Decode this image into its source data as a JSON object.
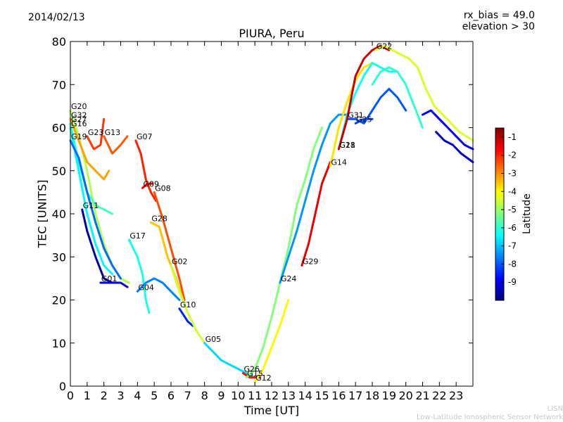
{
  "header": {
    "date": "2014/02/13",
    "bias_line1": "rx_bias = 49.0",
    "bias_line2": "elevation > 30"
  },
  "footer": {
    "credit_line1": "LISN",
    "credit_line2": "Low-Latitude Ionospheric Sensor Network"
  },
  "chart_data": {
    "type": "scatter",
    "title": "PIURA, Peru",
    "xlabel": "Time [UT]",
    "ylabel": "TEC [UNITS]",
    "xlim": [
      0,
      24
    ],
    "ylim": [
      0,
      80
    ],
    "xticks": [
      "0",
      "1",
      "2",
      "3",
      "4",
      "5",
      "6",
      "7",
      "8",
      "9",
      "10",
      "11",
      "12",
      "13",
      "14",
      "15",
      "16",
      "17",
      "18",
      "19",
      "20",
      "21",
      "22",
      "23"
    ],
    "yticks": [
      "0",
      "10",
      "20",
      "30",
      "40",
      "50",
      "60",
      "70",
      "80"
    ],
    "grid": false,
    "colorbar": {
      "label": "Latitude",
      "range": [
        -10,
        -0.5
      ],
      "ticks": [
        "-1",
        "-2",
        "-3",
        "-4",
        "-5",
        "-6",
        "-7",
        "-8",
        "-9"
      ],
      "colormap": [
        "#00007f",
        "#0000ff",
        "#007fff",
        "#00ffff",
        "#7fff7f",
        "#ffff00",
        "#ff7f00",
        "#ff0000",
        "#7f0000"
      ]
    },
    "series": [
      {
        "name": "G20",
        "lat": -4.8,
        "points": [
          [
            0,
            64
          ],
          [
            0.5,
            58
          ],
          [
            1,
            50
          ],
          [
            1.5,
            40
          ],
          [
            2,
            33
          ],
          [
            2.5,
            28
          ],
          [
            3,
            25
          ],
          [
            3.5,
            24
          ]
        ]
      },
      {
        "name": "G32",
        "lat": -3.2,
        "points": [
          [
            0,
            62
          ],
          [
            0.5,
            57
          ],
          [
            1,
            52
          ],
          [
            1.5,
            50
          ],
          [
            2,
            48
          ],
          [
            2.3,
            50
          ]
        ]
      },
      {
        "name": "G27",
        "lat": -5.8,
        "points": [
          [
            0,
            61
          ],
          [
            0.5,
            52
          ],
          [
            1,
            45
          ],
          [
            1.5,
            42
          ],
          [
            2,
            41
          ],
          [
            2.5,
            40
          ]
        ]
      },
      {
        "name": "G16",
        "lat": -6.5,
        "points": [
          [
            0,
            60
          ],
          [
            0.5,
            50
          ],
          [
            1,
            40
          ],
          [
            1.5,
            33
          ],
          [
            2,
            28
          ],
          [
            2.5,
            26
          ]
        ]
      },
      {
        "name": "G23",
        "lat": -2.2,
        "points": [
          [
            1,
            58
          ],
          [
            1.4,
            55
          ],
          [
            1.8,
            56
          ],
          [
            2,
            62
          ]
        ]
      },
      {
        "name": "G13",
        "lat": -2.5,
        "points": [
          [
            2,
            58
          ],
          [
            2.5,
            54
          ],
          [
            3,
            56
          ],
          [
            3.4,
            58
          ]
        ]
      },
      {
        "name": "G19",
        "lat": -7.8,
        "points": [
          [
            0,
            57
          ],
          [
            0.5,
            53
          ],
          [
            1,
            45
          ],
          [
            1.5,
            38
          ],
          [
            2,
            32
          ],
          [
            2.5,
            28
          ],
          [
            3,
            25
          ]
        ]
      },
      {
        "name": "G11",
        "lat": -9.6,
        "points": [
          [
            0.7,
            41
          ],
          [
            1,
            36
          ],
          [
            1.5,
            30
          ],
          [
            2,
            25
          ],
          [
            2.5,
            24
          ]
        ]
      },
      {
        "name": "G01",
        "lat": -9.0,
        "points": [
          [
            1.8,
            24
          ],
          [
            2.5,
            24
          ],
          [
            3,
            24
          ],
          [
            3.4,
            23
          ]
        ]
      },
      {
        "name": "G07",
        "lat": -2.0,
        "points": [
          [
            3.9,
            57
          ],
          [
            4.2,
            54
          ],
          [
            4.5,
            48
          ],
          [
            4.8,
            45
          ],
          [
            5.1,
            43
          ]
        ]
      },
      {
        "name": "G09",
        "lat": -1.5,
        "points": [
          [
            4.3,
            46
          ],
          [
            4.6,
            47
          ],
          [
            4.9,
            47
          ]
        ]
      },
      {
        "name": "G08",
        "lat": -2.4,
        "points": [
          [
            5,
            45
          ],
          [
            5.5,
            39
          ],
          [
            6,
            32
          ],
          [
            6.5,
            25
          ],
          [
            6.8,
            20
          ]
        ]
      },
      {
        "name": "G17",
        "lat": -6.2,
        "points": [
          [
            3.5,
            34
          ],
          [
            4,
            30
          ],
          [
            4.3,
            26
          ],
          [
            4.5,
            20
          ],
          [
            4.7,
            17
          ]
        ]
      },
      {
        "name": "G04",
        "lat": -7.6,
        "points": [
          [
            4,
            22
          ],
          [
            4.5,
            24
          ],
          [
            5,
            25
          ],
          [
            5.5,
            24
          ],
          [
            6,
            22
          ],
          [
            6.5,
            20
          ]
        ]
      },
      {
        "name": "G28",
        "lat": -3.5,
        "points": [
          [
            4.8,
            38
          ],
          [
            5.3,
            37
          ],
          [
            5.8,
            30
          ],
          [
            6.3,
            25
          ],
          [
            6.8,
            19
          ]
        ]
      },
      {
        "name": "G10",
        "lat": -8.5,
        "points": [
          [
            6.5,
            18
          ],
          [
            7,
            15
          ],
          [
            7.3,
            14
          ]
        ]
      },
      {
        "name": "G02",
        "lat": -4.5,
        "points": [
          [
            6,
            28
          ],
          [
            6.5,
            22
          ],
          [
            7,
            17
          ],
          [
            7.5,
            13
          ],
          [
            8,
            10
          ],
          [
            8.5,
            8
          ],
          [
            9,
            6
          ]
        ]
      },
      {
        "name": "G05",
        "lat": -6.8,
        "points": [
          [
            8,
            10
          ],
          [
            8.5,
            8
          ],
          [
            9,
            6
          ],
          [
            9.5,
            5
          ],
          [
            10,
            4
          ],
          [
            10.5,
            3
          ],
          [
            11,
            2
          ]
        ]
      },
      {
        "name": "G26",
        "lat": -1.8,
        "points": [
          [
            10.3,
            3
          ],
          [
            10.7,
            2
          ],
          [
            11,
            2
          ],
          [
            11.3,
            2
          ]
        ]
      },
      {
        "name": "G12",
        "lat": -4.0,
        "points": [
          [
            11,
            1
          ],
          [
            11.5,
            4
          ],
          [
            12,
            9
          ],
          [
            12.5,
            14
          ],
          [
            13,
            20
          ]
        ]
      },
      {
        "name": "G15",
        "lat": -5.2,
        "points": [
          [
            10.5,
            2
          ],
          [
            11,
            4
          ],
          [
            11.5,
            9
          ],
          [
            12,
            16
          ],
          [
            12.5,
            24
          ],
          [
            13,
            32
          ],
          [
            13.5,
            42
          ],
          [
            14,
            48
          ],
          [
            14.5,
            55
          ],
          [
            15,
            60
          ]
        ]
      },
      {
        "name": "G24",
        "lat": -7.4,
        "points": [
          [
            12.5,
            24
          ],
          [
            13,
            30
          ],
          [
            13.5,
            36
          ],
          [
            14,
            43
          ],
          [
            14.5,
            50
          ],
          [
            15,
            56
          ],
          [
            15.5,
            61
          ],
          [
            16,
            63
          ],
          [
            16.5,
            63
          ]
        ]
      },
      {
        "name": "G29",
        "lat": -1.5,
        "points": [
          [
            13.8,
            28
          ],
          [
            14.2,
            33
          ],
          [
            14.6,
            40
          ],
          [
            15,
            47
          ],
          [
            15.5,
            52
          ]
        ]
      },
      {
        "name": "G14",
        "lat": -3.8,
        "points": [
          [
            15.5,
            51
          ],
          [
            16,
            60
          ],
          [
            16.5,
            66
          ],
          [
            17,
            71
          ],
          [
            17.5,
            74
          ],
          [
            18,
            75
          ],
          [
            18.5,
            74
          ]
        ]
      },
      {
        "name": "G21",
        "lat": -6.3,
        "points": [
          [
            16,
            55
          ],
          [
            16.5,
            63
          ],
          [
            17,
            68
          ],
          [
            17.5,
            72
          ],
          [
            18,
            75
          ],
          [
            18.5,
            74
          ],
          [
            19,
            73
          ],
          [
            19.5,
            73
          ]
        ]
      },
      {
        "name": "G25",
        "lat": -8.2,
        "points": [
          [
            17,
            61
          ],
          [
            17.5,
            62
          ],
          [
            18,
            62
          ]
        ]
      },
      {
        "name": "G31",
        "lat": -8.0,
        "points": [
          [
            16.5,
            62
          ],
          [
            17,
            62
          ],
          [
            17.5,
            61
          ],
          [
            18,
            64
          ],
          [
            18.5,
            67
          ],
          [
            19,
            69
          ],
          [
            19.5,
            67
          ],
          [
            20,
            64
          ]
        ]
      },
      {
        "name": "G18",
        "lat": -1.2,
        "points": [
          [
            16,
            55
          ],
          [
            16.5,
            62
          ],
          [
            17,
            72
          ],
          [
            17.5,
            76
          ],
          [
            18,
            78
          ],
          [
            18.5,
            79
          ],
          [
            19,
            78
          ]
        ]
      },
      {
        "name": "G22",
        "lat": -4.4,
        "points": [
          [
            18.2,
            78
          ],
          [
            18.7,
            79
          ],
          [
            19.2,
            78
          ],
          [
            19.7,
            77
          ],
          [
            20.2,
            76
          ],
          [
            20.7,
            74
          ],
          [
            21.2,
            69
          ],
          [
            21.7,
            65
          ],
          [
            22.2,
            63
          ],
          [
            22.7,
            61
          ],
          [
            23.2,
            59
          ],
          [
            24,
            57
          ]
        ]
      },
      {
        "name": "",
        "lat": -6.0,
        "points": [
          [
            18,
            70
          ],
          [
            18.5,
            73
          ],
          [
            19,
            74
          ],
          [
            19.5,
            73
          ],
          [
            20,
            70
          ],
          [
            20.5,
            65
          ],
          [
            21,
            60
          ]
        ]
      },
      {
        "name": "",
        "lat": -8.8,
        "points": [
          [
            21,
            63
          ],
          [
            21.5,
            64
          ],
          [
            22,
            62
          ],
          [
            22.5,
            60
          ],
          [
            23,
            58
          ],
          [
            23.5,
            56
          ],
          [
            24,
            55
          ]
        ]
      },
      {
        "name": "",
        "lat": -9.3,
        "points": [
          [
            21.8,
            59
          ],
          [
            22.3,
            57
          ],
          [
            22.8,
            56
          ],
          [
            23.3,
            54
          ],
          [
            24,
            52
          ]
        ]
      }
    ]
  }
}
